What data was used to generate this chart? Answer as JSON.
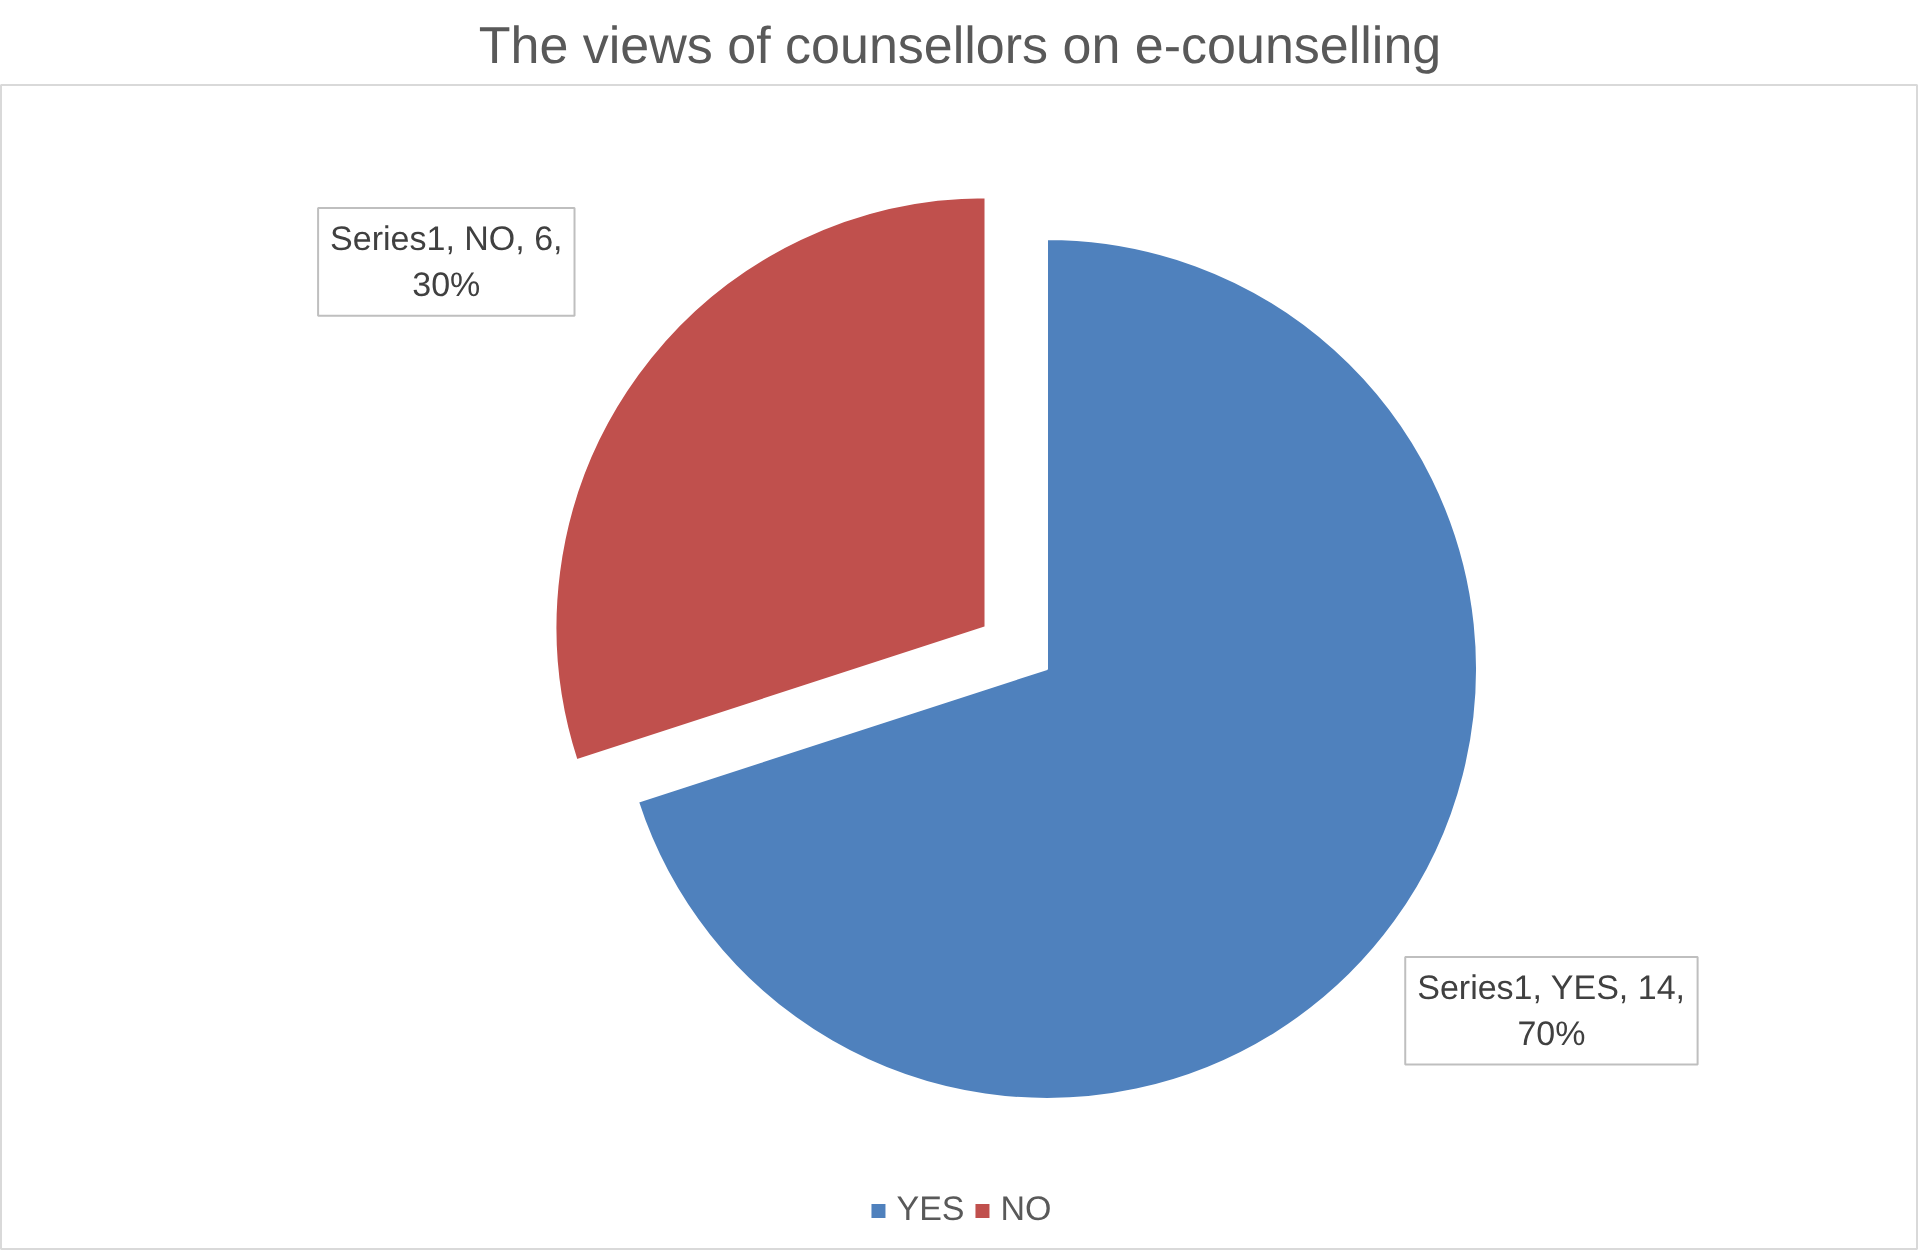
{
  "chart_data": {
    "type": "pie",
    "title": "The views of counsellors on e-counselling",
    "categories": [
      "YES",
      "NO"
    ],
    "values": [
      14,
      6
    ],
    "colors": [
      "#4f81bd",
      "#c0504d"
    ],
    "value_labels": [
      "Series1, YES, 14, 70%",
      "Series1, NO, 6, 30%"
    ],
    "legend": "bottom"
  }
}
